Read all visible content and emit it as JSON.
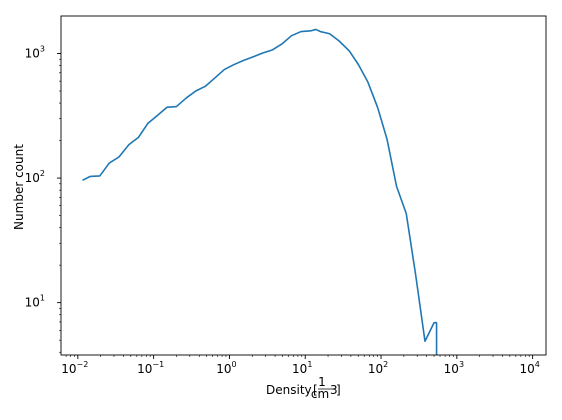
{
  "chart_data": {
    "type": "line",
    "title": "",
    "xlabel": "Density",
    "xlabel_unit": {
      "numerator": "1",
      "denominator": "cm",
      "denominator_exponent": "3"
    },
    "ylabel": "Number count",
    "xscale": "log",
    "yscale": "log",
    "xlim": [
      0.006,
      15000
    ],
    "ylim": [
      3.8,
      2000
    ],
    "grid": false,
    "line_color": "#1f77b4",
    "x_ticks": [
      {
        "base": "10",
        "exponent": "−2",
        "value": 0.01
      },
      {
        "base": "10",
        "exponent": "−1",
        "value": 0.1
      },
      {
        "base": "10",
        "exponent": "0",
        "value": 1
      },
      {
        "base": "10",
        "exponent": "1",
        "value": 10
      },
      {
        "base": "10",
        "exponent": "2",
        "value": 100
      },
      {
        "base": "10",
        "exponent": "3",
        "value": 1000
      },
      {
        "base": "10",
        "exponent": "4",
        "value": 10000
      }
    ],
    "y_ticks": [
      {
        "base": "10",
        "exponent": "1",
        "value": 10
      },
      {
        "base": "10",
        "exponent": "2",
        "value": 100
      },
      {
        "base": "10",
        "exponent": "3",
        "value": 1000
      }
    ],
    "series": [
      {
        "x": [
          0.0115,
          0.0145,
          0.0195,
          0.026,
          0.035,
          0.047,
          0.063,
          0.084,
          0.112,
          0.15,
          0.2,
          0.27,
          0.36,
          0.48,
          0.64,
          0.86,
          1.15,
          1.54,
          2.05,
          2.75,
          3.7,
          4.9,
          6.6,
          8.8,
          11.8,
          13.8,
          15.8,
          21,
          28,
          38,
          50,
          67,
          90,
          120,
          160,
          215,
          285,
          380,
          500,
          540,
          540
        ],
        "y": [
          96,
          103,
          104,
          132,
          148,
          185,
          212,
          275,
          318,
          370,
          375,
          440,
          500,
          545,
          635,
          745,
          815,
          880,
          940,
          1010,
          1070,
          1190,
          1390,
          1500,
          1520,
          1560,
          1500,
          1440,
          1260,
          1050,
          820,
          590,
          370,
          205,
          86,
          52,
          17,
          4.9,
          6.9,
          6.9,
          3.8
        ]
      }
    ]
  }
}
